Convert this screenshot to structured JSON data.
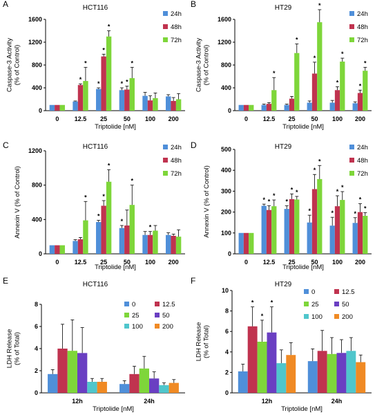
{
  "chart_data": [
    {
      "type": "bar",
      "panel": "A",
      "title": "HCT116",
      "xlabel": "Triptolide [nM]",
      "ylabel": "Caspase-3 Activity (% of Control)",
      "ylabel_lines": [
        "Caspase-3 Activity",
        "(% of Control)"
      ],
      "ylim": [
        0,
        1600
      ],
      "yticks": [
        0,
        400,
        800,
        1200,
        1600
      ],
      "categories": [
        "0",
        "12.5",
        "25",
        "50",
        "100",
        "200"
      ],
      "legend_position": "top-right",
      "series": [
        {
          "name": "24h",
          "color": "#4f8fd9",
          "values": [
            100,
            160,
            380,
            360,
            260,
            250
          ],
          "errors": [
            0,
            10,
            20,
            40,
            60,
            30
          ],
          "stars": [
            false,
            false,
            true,
            true,
            false,
            false
          ]
        },
        {
          "name": "48h",
          "color": "#c0334f",
          "values": [
            100,
            450,
            950,
            370,
            180,
            170
          ],
          "errors": [
            0,
            20,
            40,
            60,
            80,
            60
          ],
          "stars": [
            false,
            true,
            true,
            true,
            false,
            false
          ]
        },
        {
          "name": "72h",
          "color": "#7ed63a",
          "values": [
            100,
            520,
            1300,
            570,
            220,
            200
          ],
          "errors": [
            0,
            240,
            100,
            190,
            90,
            100
          ],
          "stars": [
            false,
            true,
            true,
            true,
            false,
            false
          ]
        }
      ]
    },
    {
      "type": "bar",
      "panel": "B",
      "title": "HT29",
      "xlabel": "Triptolide [nM]",
      "ylabel": "Caspase-3 Activity (% of Control)",
      "ylabel_lines": [
        "Caspase-3 Activity",
        "(% of Control)"
      ],
      "ylim": [
        0,
        1600
      ],
      "yticks": [
        0,
        400,
        800,
        1200,
        1600
      ],
      "categories": [
        "0",
        "12.5",
        "25",
        "50",
        "100",
        "200"
      ],
      "legend_position": "top-right",
      "series": [
        {
          "name": "24h",
          "color": "#4f8fd9",
          "values": [
            100,
            100,
            100,
            140,
            140,
            130
          ],
          "errors": [
            0,
            15,
            15,
            30,
            40,
            25
          ],
          "stars": [
            false,
            false,
            false,
            false,
            false,
            false
          ]
        },
        {
          "name": "48h",
          "color": "#c0334f",
          "values": [
            100,
            120,
            210,
            650,
            360,
            310
          ],
          "errors": [
            0,
            20,
            40,
            200,
            60,
            50
          ],
          "stars": [
            false,
            false,
            false,
            true,
            true,
            true
          ]
        },
        {
          "name": "72h",
          "color": "#7ed63a",
          "values": [
            100,
            360,
            1010,
            1550,
            860,
            700
          ],
          "errors": [
            0,
            220,
            160,
            220,
            60,
            60
          ],
          "stars": [
            false,
            true,
            true,
            true,
            true,
            true
          ]
        }
      ]
    },
    {
      "type": "bar",
      "panel": "C",
      "title": "HCT116",
      "xlabel": "Triptolide [nM]",
      "ylabel": "Annexin V (% of Control)",
      "ylabel_lines": [
        "Annexin V (% of Control)"
      ],
      "ylim": [
        0,
        1200
      ],
      "yticks": [
        0,
        400,
        800,
        1200
      ],
      "categories": [
        "0",
        "12.5",
        "25",
        "50",
        "100",
        "200"
      ],
      "legend_position": "top-right",
      "series": [
        {
          "name": "24h",
          "color": "#4f8fd9",
          "values": [
            100,
            150,
            370,
            300,
            220,
            220
          ],
          "errors": [
            0,
            15,
            20,
            30,
            40,
            25
          ],
          "stars": [
            false,
            false,
            true,
            true,
            false,
            false
          ]
        },
        {
          "name": "48h",
          "color": "#c0334f",
          "values": [
            100,
            170,
            560,
            330,
            220,
            210
          ],
          "errors": [
            0,
            20,
            60,
            180,
            40,
            20
          ],
          "stars": [
            false,
            false,
            true,
            false,
            true,
            false
          ]
        },
        {
          "name": "72h",
          "color": "#7ed63a",
          "values": [
            100,
            390,
            840,
            570,
            270,
            200
          ],
          "errors": [
            0,
            220,
            140,
            230,
            60,
            80
          ],
          "stars": [
            false,
            true,
            true,
            true,
            false,
            false
          ]
        }
      ]
    },
    {
      "type": "bar",
      "panel": "D",
      "title": "HT29",
      "xlabel": "Triptolide [nM]",
      "ylabel": "Annexin V (% of Control)",
      "ylabel_lines": [
        "Annexin V (% of Control)"
      ],
      "ylim": [
        0,
        500
      ],
      "yticks": [
        0,
        100,
        200,
        300,
        400,
        500
      ],
      "categories": [
        "0",
        "12.5",
        "25",
        "50",
        "100",
        "200"
      ],
      "legend_position": "top-right",
      "series": [
        {
          "name": "24h",
          "color": "#4f8fd9",
          "values": [
            100,
            230,
            215,
            150,
            135,
            148
          ],
          "errors": [
            0,
            8,
            15,
            35,
            40,
            25
          ],
          "stars": [
            false,
            true,
            true,
            true,
            true,
            true
          ]
        },
        {
          "name": "48h",
          "color": "#c0334f",
          "values": [
            100,
            210,
            262,
            310,
            228,
            200
          ],
          "errors": [
            0,
            20,
            25,
            70,
            50,
            40
          ],
          "stars": [
            false,
            true,
            true,
            true,
            true,
            true
          ]
        },
        {
          "name": "72h",
          "color": "#7ed63a",
          "values": [
            100,
            228,
            260,
            358,
            258,
            182
          ],
          "errors": [
            0,
            30,
            15,
            65,
            40,
            15
          ],
          "stars": [
            false,
            true,
            true,
            true,
            true,
            true
          ]
        }
      ]
    },
    {
      "type": "bar",
      "panel": "E",
      "title": "HCT116",
      "xlabel": "Triptolide [nM]",
      "ylabel": "LDH Release (% of Total)",
      "ylabel_lines": [
        "LDH Release",
        "(% of Total)"
      ],
      "ylim": [
        0,
        8
      ],
      "yticks": [
        0,
        2,
        4,
        6,
        8
      ],
      "categories": [
        "12h",
        "24h"
      ],
      "legend_position": "top-right",
      "series": [
        {
          "name": "0",
          "color": "#4f8fd9",
          "values": [
            1.7,
            0.8
          ],
          "errors": [
            0.4,
            0.3
          ],
          "stars": [
            false,
            false
          ]
        },
        {
          "name": "12.5",
          "color": "#c0334f",
          "values": [
            4.0,
            1.7
          ],
          "errors": [
            2.2,
            0.7
          ],
          "stars": [
            false,
            false
          ]
        },
        {
          "name": "25",
          "color": "#7ed63a",
          "values": [
            3.8,
            2.2
          ],
          "errors": [
            2.8,
            1.1
          ],
          "stars": [
            false,
            false
          ]
        },
        {
          "name": "50",
          "color": "#6a3fc2",
          "values": [
            3.6,
            1.3
          ],
          "errors": [
            2.3,
            0.6
          ],
          "stars": [
            false,
            false
          ]
        },
        {
          "name": "100",
          "color": "#4fc6cc",
          "values": [
            1.0,
            0.7
          ],
          "errors": [
            0.3,
            0.2
          ],
          "stars": [
            false,
            false
          ]
        },
        {
          "name": "200",
          "color": "#f08a24",
          "values": [
            1.0,
            0.9
          ],
          "errors": [
            0.3,
            0.3
          ],
          "stars": [
            false,
            false
          ]
        }
      ]
    },
    {
      "type": "bar",
      "panel": "F",
      "title": "HT29",
      "xlabel": "Triptolide [nM]",
      "ylabel": "LDH Release (% of Total)",
      "ylabel_lines": [
        "LDH Release",
        "(% of Total)"
      ],
      "ylim": [
        0,
        10
      ],
      "yticks": [
        0,
        2,
        4,
        6,
        8,
        10
      ],
      "categories": [
        "12h",
        "24h"
      ],
      "legend_position": "top-right",
      "series": [
        {
          "name": "0",
          "color": "#4f8fd9",
          "values": [
            2.1,
            3.1
          ],
          "errors": [
            0.7,
            1.2
          ],
          "stars": [
            false,
            false
          ]
        },
        {
          "name": "12.5",
          "color": "#c0334f",
          "values": [
            6.5,
            4.1
          ],
          "errors": [
            1.9,
            2.0
          ],
          "stars": [
            true,
            false
          ]
        },
        {
          "name": "25",
          "color": "#7ed63a",
          "values": [
            5.0,
            3.8
          ],
          "errors": [
            2.1,
            1.6
          ],
          "stars": [
            true,
            false
          ]
        },
        {
          "name": "50",
          "color": "#6a3fc2",
          "values": [
            5.9,
            3.9
          ],
          "errors": [
            2.5,
            1.3
          ],
          "stars": [
            true,
            false
          ]
        },
        {
          "name": "100",
          "color": "#4fc6cc",
          "values": [
            2.9,
            4.1
          ],
          "errors": [
            1.3,
            1.3
          ],
          "stars": [
            false,
            false
          ]
        },
        {
          "name": "200",
          "color": "#f08a24",
          "values": [
            3.7,
            3.0
          ],
          "errors": [
            1.2,
            0.7
          ],
          "stars": [
            false,
            false
          ]
        }
      ]
    }
  ]
}
